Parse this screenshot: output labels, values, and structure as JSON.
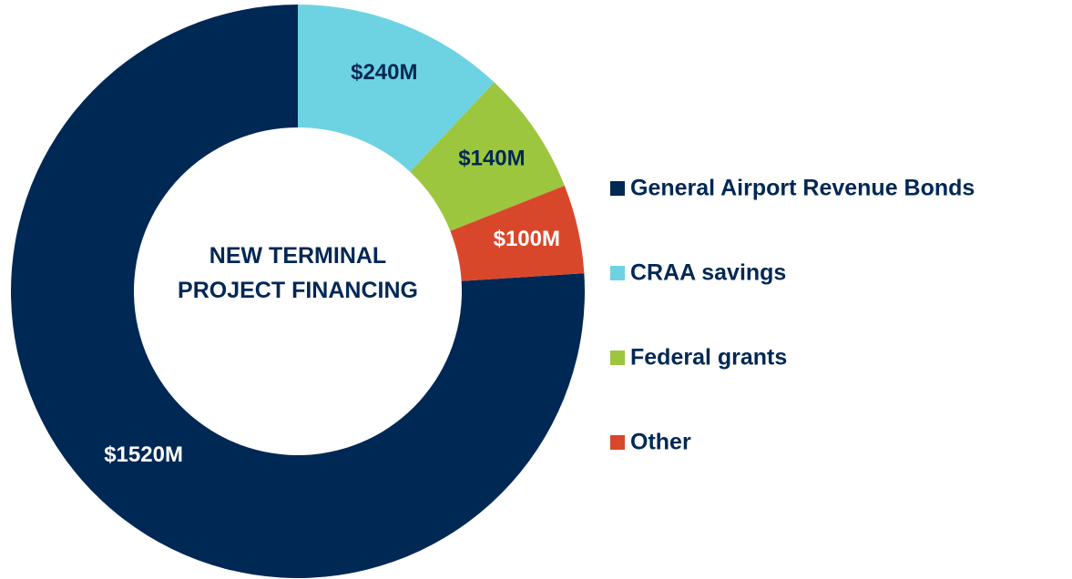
{
  "chart_data": {
    "type": "donut",
    "title": "NEW TERMINAL PROJECT FINANCING",
    "categories": [
      "General Airport Revenue Bonds",
      "CRAA savings",
      "Federal grants",
      "Other"
    ],
    "values": [
      1520,
      240,
      140,
      100
    ],
    "value_labels": [
      "$1520M",
      "$240M",
      "$140M",
      "$100M"
    ],
    "colors": [
      "#002855",
      "#6dd3e3",
      "#9dc63f",
      "#d9472b"
    ],
    "legend": "right"
  }
}
